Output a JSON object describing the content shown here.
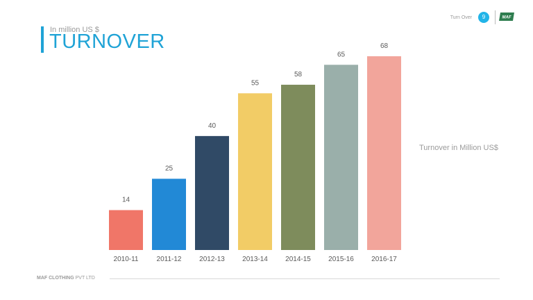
{
  "header": {
    "subtitle": "In million  US $",
    "title": "TURNOVER",
    "section_label": "Turn Over",
    "page_number": "9",
    "logo_text": "MAF"
  },
  "footer": {
    "company_bold": "MAF CLOTHING",
    "company_rest": " PVT LTD"
  },
  "colors": {
    "accent": "#1fa3d6",
    "badge": "#22b4e8"
  },
  "chart_data": {
    "type": "bar",
    "categories": [
      "2010-11",
      "2011-12",
      "2012-13",
      "2013-14",
      "2014-15",
      "2015-16",
      "2016-17"
    ],
    "series": [
      {
        "name": "Turnover  in Million US$",
        "values": [
          14,
          25,
          40,
          55,
          58,
          65,
          68
        ]
      }
    ],
    "bar_colors": [
      "#f07668",
      "#2289d6",
      "#304a66",
      "#f2cc66",
      "#7e8c5c",
      "#9aafaa",
      "#f2a59b"
    ],
    "title": "",
    "xlabel": "",
    "ylabel": "",
    "ylim": [
      0,
      68
    ],
    "grid": false,
    "legend": "right",
    "data_labels": true
  }
}
